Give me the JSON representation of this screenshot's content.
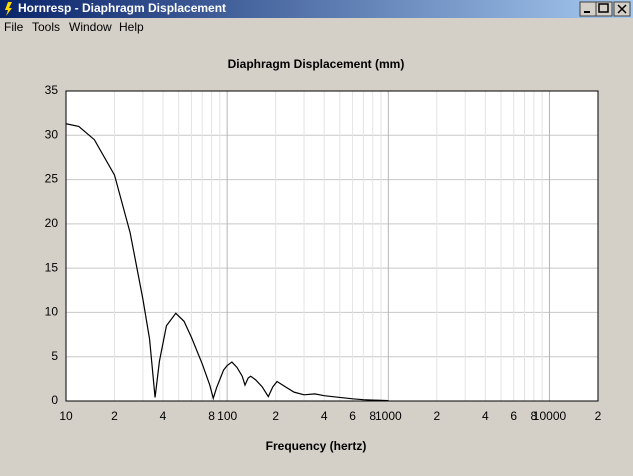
{
  "window": {
    "title": "Hornresp - Diaphragm Displacement"
  },
  "menu": [
    "File",
    "Tools",
    "Window",
    "Help"
  ],
  "chart_data": {
    "type": "line",
    "title": "Diaphragm Displacement (mm)",
    "x_label": "Frequency (hertz)",
    "xscale": "log",
    "xlim": [
      10,
      20000
    ],
    "ylim": [
      0,
      35
    ],
    "grid": true,
    "color": "#000000",
    "yticks": [
      0,
      5,
      10,
      15,
      20,
      25,
      30,
      35
    ],
    "xticks": [
      10,
      {
        "value": 20,
        "label": "2"
      },
      {
        "value": 40,
        "label": "4"
      },
      {
        "value": 80,
        "label": "8"
      },
      100,
      {
        "value": 200,
        "label": "2"
      },
      {
        "value": 400,
        "label": "4"
      },
      {
        "value": 600,
        "label": "6"
      },
      {
        "value": 800,
        "label": "8"
      },
      1000,
      {
        "value": 2000,
        "label": "2"
      },
      {
        "value": 4000,
        "label": "4"
      },
      {
        "value": 6000,
        "label": "6"
      },
      {
        "value": 8000,
        "label": "8"
      },
      10000,
      {
        "value": 20000,
        "label": "2"
      }
    ],
    "xminor": [
      30,
      50,
      60,
      70,
      90,
      300,
      500,
      700,
      900,
      3000,
      5000,
      7000,
      9000
    ],
    "x": [
      10,
      12,
      15,
      20,
      25,
      30,
      33,
      35.7,
      38,
      42,
      48,
      54,
      60,
      70,
      78,
      82,
      86,
      95,
      100,
      107,
      115,
      124,
      129,
      135,
      140,
      150,
      165,
      180,
      192,
      204,
      230,
      260,
      300,
      350,
      400,
      500,
      600,
      700,
      800,
      1000
    ],
    "values": [
      31.3,
      31.0,
      29.5,
      25.5,
      19,
      11.5,
      7,
      0.4,
      4.5,
      8.5,
      9.9,
      9.0,
      7.2,
      4.2,
      1.8,
      0.3,
      1.5,
      3.5,
      4.0,
      4.4,
      3.8,
      2.8,
      1.8,
      2.6,
      2.8,
      2.4,
      1.6,
      0.5,
      1.6,
      2.2,
      1.6,
      1.0,
      0.7,
      0.8,
      0.6,
      0.4,
      0.25,
      0.15,
      0.1,
      0.05
    ]
  }
}
